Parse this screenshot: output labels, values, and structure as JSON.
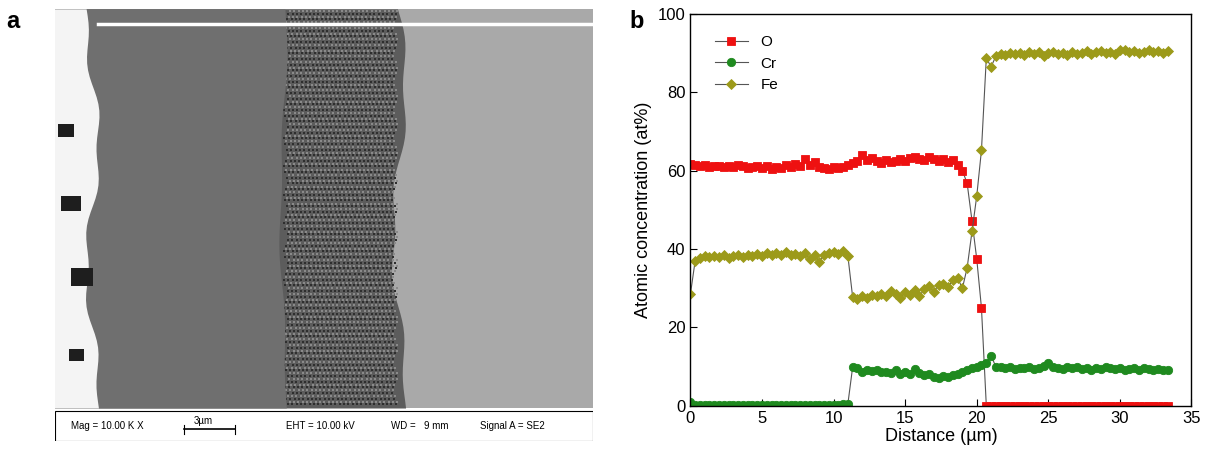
{
  "panel_a": {
    "panel_label": "a",
    "info_bar": {
      "magnification": "Mag = 10.00 K X",
      "scale_bar": "3µm",
      "eht": "EHT = 10.00 kV",
      "working_distance": "WD =   9 mm",
      "signal": "Signal A = SE2"
    }
  },
  "chart_data": {
    "type": "line",
    "panel_label": "b",
    "x_label": "Distance (µm)",
    "y_label": "Atomic concentration (at%)",
    "xlim": [
      0,
      35
    ],
    "xticks": [
      0,
      5,
      10,
      15,
      20,
      25,
      30,
      35
    ],
    "ylim": [
      0,
      100
    ],
    "yticks": [
      0,
      20,
      40,
      60,
      80,
      100
    ],
    "legend": "upper left",
    "x": [
      0,
      0.33,
      0.67,
      1,
      1.33,
      1.67,
      2,
      2.33,
      2.67,
      3,
      3.33,
      3.67,
      4,
      4.33,
      4.67,
      5,
      5.33,
      5.67,
      6,
      6.33,
      6.67,
      7,
      7.33,
      7.67,
      8,
      8.33,
      8.67,
      9,
      9.33,
      9.67,
      10,
      10.33,
      10.67,
      11,
      11.33,
      11.67,
      12,
      12.33,
      12.67,
      13,
      13.33,
      13.67,
      14,
      14.33,
      14.67,
      15,
      15.33,
      15.67,
      16,
      16.33,
      16.67,
      17,
      17.33,
      17.67,
      18,
      18.33,
      18.67,
      19,
      19.33,
      19.67,
      20,
      20.33,
      20.67,
      21,
      21.33,
      21.67,
      22,
      22.33,
      22.67,
      23,
      23.33,
      23.67,
      24,
      24.33,
      24.67,
      25,
      25.33,
      25.67,
      26,
      26.33,
      26.67,
      27,
      27.33,
      27.67,
      28,
      28.33,
      28.67,
      29,
      29.33,
      29.67,
      30,
      30.33,
      30.67,
      31,
      31.33,
      31.67,
      32,
      32.33,
      32.67,
      33,
      33.33
    ],
    "series": [
      {
        "name": "O",
        "color": "#ee1111",
        "marker": "square",
        "line_style": "solid",
        "values": [
          61.8,
          61.5,
          61.2,
          61.4,
          61.0,
          61.3,
          61.1,
          60.9,
          61.2,
          61.0,
          61.4,
          61.1,
          60.8,
          61.0,
          61.3,
          60.7,
          61.2,
          60.5,
          61.0,
          60.8,
          61.4,
          61.0,
          61.6,
          61.2,
          63.0,
          61.5,
          62.2,
          61.0,
          60.8,
          60.5,
          61.0,
          60.6,
          60.9,
          61.5,
          62.0,
          62.5,
          64.0,
          62.8,
          63.2,
          62.4,
          62.0,
          62.8,
          62.2,
          62.5,
          63.0,
          62.6,
          63.2,
          63.5,
          63.0,
          62.7,
          63.4,
          62.9,
          62.5,
          63.0,
          62.2,
          62.8,
          61.5,
          60.0,
          56.8,
          47.2,
          37.5,
          25.0,
          0,
          0,
          0,
          0,
          0,
          0,
          0,
          0,
          0,
          0,
          0,
          0,
          0,
          0,
          0,
          0,
          0,
          0,
          0,
          0,
          0,
          0,
          0,
          0,
          0,
          0,
          0,
          0,
          0,
          0,
          0,
          0,
          0,
          0,
          0,
          0,
          0,
          0,
          0
        ]
      },
      {
        "name": "Cr",
        "color": "#1f8a1f",
        "marker": "circle",
        "line_style": "solid",
        "values": [
          1.0,
          0.3,
          0.2,
          0.3,
          0.3,
          0.2,
          0.3,
          0.2,
          0.3,
          0.3,
          0.2,
          0.3,
          0.2,
          0.3,
          0.3,
          0.2,
          0.3,
          0.2,
          0.3,
          0.3,
          0.2,
          0.3,
          0.2,
          0.3,
          0.3,
          0.2,
          0.3,
          0.2,
          0.3,
          0.3,
          0.2,
          0.3,
          0.4,
          0.5,
          9.8,
          9.5,
          8.6,
          9.2,
          8.8,
          9.0,
          8.5,
          8.7,
          8.3,
          9.1,
          8.2,
          8.6,
          8.0,
          9.3,
          8.4,
          7.8,
          8.1,
          7.2,
          7.0,
          7.5,
          7.3,
          7.8,
          8.2,
          8.5,
          9.0,
          9.6,
          9.8,
          10.5,
          11.0,
          12.8,
          10.0,
          9.8,
          9.6,
          9.9,
          9.4,
          9.7,
          9.5,
          9.8,
          9.3,
          9.6,
          10.2,
          10.8,
          10.0,
          9.7,
          9.4,
          9.8,
          9.5,
          9.9,
          9.3,
          9.6,
          9.2,
          9.7,
          9.4,
          9.8,
          9.5,
          9.3,
          9.6,
          9.1,
          9.4,
          9.7,
          9.2,
          9.5,
          9.3,
          9.0,
          9.4,
          9.1,
          9.2
        ]
      },
      {
        "name": "Fe",
        "color": "#9c9a1a",
        "marker": "diamond",
        "line_style": "solid",
        "values": [
          28.5,
          37.0,
          37.8,
          38.2,
          37.9,
          38.3,
          38.0,
          38.5,
          37.8,
          38.2,
          38.4,
          38.0,
          38.6,
          38.1,
          38.7,
          38.3,
          38.9,
          38.4,
          39.0,
          38.6,
          39.2,
          38.5,
          38.8,
          38.2,
          38.9,
          37.5,
          38.4,
          36.8,
          38.6,
          38.9,
          39.2,
          38.7,
          39.4,
          38.2,
          27.8,
          27.2,
          28.0,
          27.5,
          28.3,
          27.9,
          28.6,
          28.1,
          29.2,
          28.4,
          27.6,
          29.0,
          28.2,
          29.5,
          27.9,
          29.8,
          30.5,
          29.1,
          30.8,
          31.2,
          30.4,
          32.0,
          32.5,
          30.0,
          35.2,
          44.5,
          53.5,
          65.2,
          88.8,
          86.5,
          89.2,
          89.8,
          89.5,
          90.1,
          89.7,
          90.0,
          89.6,
          90.3,
          89.9,
          90.2,
          89.4,
          90.0,
          90.4,
          89.8,
          90.1,
          89.5,
          90.3,
          89.9,
          90.0,
          90.5,
          89.7,
          90.2,
          90.6,
          90.1,
          90.4,
          89.8,
          90.7,
          90.9,
          90.3,
          90.6,
          90.0,
          90.4,
          90.8,
          90.2,
          90.5,
          90.1,
          90.6
        ]
      }
    ]
  }
}
